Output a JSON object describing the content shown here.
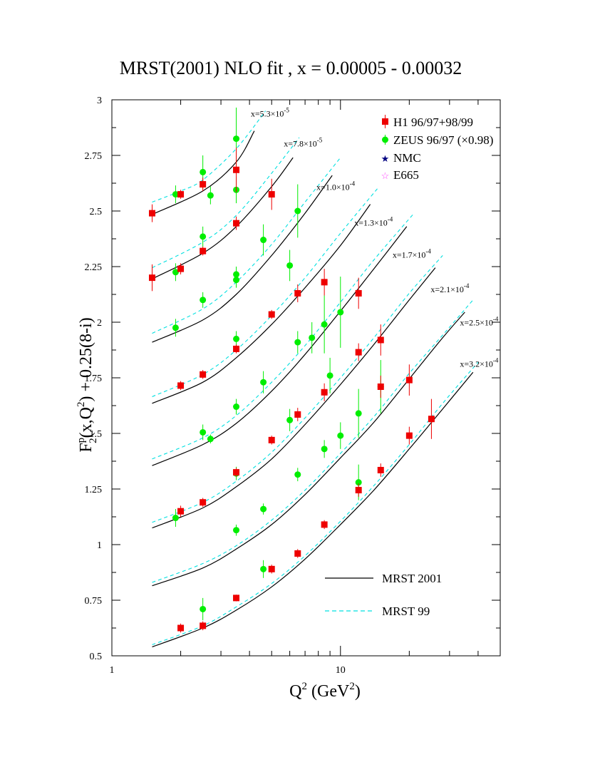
{
  "chart_data": {
    "type": "scatter",
    "title": "MRST(2001) NLO fit , x = 0.00005 - 0.00032",
    "xlabel_base": "Q",
    "xlabel_sup": "2",
    "xlabel_unit_pre": " (GeV",
    "xlabel_unit_sup": "2",
    "xlabel_unit_post": ")",
    "ylabel": {
      "f": "F",
      "sup": "p",
      "sub": "2",
      "mid": "(x,Q",
      "sup2": "2",
      "tail": ") + 0.25(8-i)"
    },
    "xscale": "log",
    "xlim": [
      1,
      50
    ],
    "ylim": [
      0.5,
      3.0
    ],
    "xticks": [
      1,
      10
    ],
    "xticklabels": [
      "1",
      "10"
    ],
    "yticks": [
      0.5,
      0.75,
      1.0,
      1.25,
      1.5,
      1.75,
      2.0,
      2.25,
      2.5,
      2.75,
      3.0
    ],
    "yticklabels": [
      "0.5",
      "0.75",
      "1",
      "1.25",
      "1.5",
      "1.75",
      "2",
      "2.25",
      "2.5",
      "2.75",
      "3"
    ],
    "legend_position": "top-right",
    "legend": [
      {
        "name": "H1 96/97+98/99",
        "marker": "square",
        "color": "#ee0000"
      },
      {
        "name": "ZEUS 96/97 (×0.98)",
        "marker": "circle",
        "color": "#00ee00"
      },
      {
        "name": "NMC",
        "marker": "star",
        "color": "#000080"
      },
      {
        "name": "E665",
        "marker": "open-star",
        "color": "#ff44ff"
      }
    ],
    "line_legend": [
      {
        "name": "MRST 2001",
        "style": "solid",
        "color": "#000000"
      },
      {
        "name": "MRST 99",
        "style": "dashed",
        "color": "#00e0e0"
      }
    ],
    "curve_labels": [
      {
        "base": "x=5.3×10",
        "exp": "-5",
        "q2": 4.05,
        "y": 2.925
      },
      {
        "base": "x=7.8×10",
        "exp": "-5",
        "q2": 5.65,
        "y": 2.79
      },
      {
        "base": "x=1.0×10",
        "exp": "-4",
        "q2": 7.85,
        "y": 2.595
      },
      {
        "base": "x=1.3×10",
        "exp": "-4",
        "q2": 11.5,
        "y": 2.435
      },
      {
        "base": "x=1.7×10",
        "exp": "-4",
        "q2": 16.9,
        "y": 2.29
      },
      {
        "base": "x=2.1×10",
        "exp": "-4",
        "q2": 24.8,
        "y": 2.135
      },
      {
        "base": "x=2.5×10",
        "exp": "-4",
        "q2": 33.3,
        "y": 1.985
      },
      {
        "base": "x=3.2×10",
        "exp": "-4",
        "q2": 33.3,
        "y": 1.8
      }
    ],
    "mrst2001": [
      {
        "x": [
          1.5,
          2.5,
          3.5,
          4.2
        ],
        "y": [
          2.485,
          2.59,
          2.72,
          2.86
        ]
      },
      {
        "x": [
          1.5,
          2.5,
          3.5,
          5.0,
          6.2
        ],
        "y": [
          2.195,
          2.31,
          2.43,
          2.61,
          2.74
        ]
      },
      {
        "x": [
          1.5,
          2.5,
          3.5,
          5.0,
          7.0,
          9.2
        ],
        "y": [
          1.91,
          2.01,
          2.125,
          2.3,
          2.49,
          2.66
        ]
      },
      {
        "x": [
          1.5,
          2.5,
          3.5,
          5.0,
          7.0,
          10.0,
          13.5
        ],
        "y": [
          1.635,
          1.73,
          1.84,
          1.99,
          2.155,
          2.345,
          2.53
        ]
      },
      {
        "x": [
          1.5,
          2.5,
          3.5,
          5.0,
          7.0,
          10.0,
          14.0,
          19.5
        ],
        "y": [
          1.355,
          1.45,
          1.545,
          1.69,
          1.855,
          2.05,
          2.24,
          2.43
        ]
      },
      {
        "x": [
          1.5,
          2.5,
          3.5,
          5.0,
          7.0,
          10.0,
          14.0,
          20.0,
          26.0
        ],
        "y": [
          1.075,
          1.165,
          1.26,
          1.385,
          1.54,
          1.72,
          1.9,
          2.1,
          2.245
        ]
      },
      {
        "x": [
          1.5,
          2.5,
          3.5,
          5.0,
          7.0,
          10.0,
          14.0,
          20.0,
          28.0,
          35.0
        ],
        "y": [
          0.815,
          0.895,
          0.98,
          1.09,
          1.225,
          1.39,
          1.55,
          1.745,
          1.93,
          2.045
        ]
      },
      {
        "x": [
          1.5,
          2.5,
          3.5,
          5.0,
          7.0,
          10.0,
          14.0,
          20.0,
          28.0,
          38.0
        ],
        "y": [
          0.54,
          0.625,
          0.705,
          0.81,
          0.935,
          1.09,
          1.245,
          1.43,
          1.61,
          1.775
        ]
      }
    ],
    "mrst99": [
      {
        "x": [
          1.5,
          2.0,
          2.5,
          3.5,
          4.7
        ],
        "y": [
          2.54,
          2.59,
          2.64,
          2.78,
          2.95
        ]
      },
      {
        "x": [
          1.5,
          2.5,
          3.5,
          5.0,
          6.6
        ],
        "y": [
          2.245,
          2.36,
          2.48,
          2.67,
          2.83
        ]
      },
      {
        "x": [
          1.5,
          2.5,
          3.5,
          5.0,
          7.0,
          10.0
        ],
        "y": [
          1.95,
          2.06,
          2.18,
          2.35,
          2.54,
          2.74
        ]
      },
      {
        "x": [
          1.5,
          2.5,
          3.5,
          5.0,
          7.0,
          10.0,
          14.5
        ],
        "y": [
          1.665,
          1.765,
          1.875,
          2.03,
          2.2,
          2.4,
          2.6
        ]
      },
      {
        "x": [
          1.5,
          2.5,
          3.5,
          5.0,
          7.0,
          10.0,
          14.0,
          21.0
        ],
        "y": [
          1.385,
          1.48,
          1.58,
          1.73,
          1.895,
          2.09,
          2.28,
          2.49
        ]
      },
      {
        "x": [
          1.5,
          2.5,
          3.5,
          5.0,
          7.0,
          10.0,
          14.0,
          20.0,
          28.0
        ],
        "y": [
          1.1,
          1.19,
          1.285,
          1.415,
          1.57,
          1.75,
          1.93,
          2.13,
          2.3
        ]
      },
      {
        "x": [
          1.5,
          2.5,
          3.5,
          5.0,
          7.0,
          10.0,
          14.0,
          20.0,
          29.0,
          38.0
        ],
        "y": [
          0.83,
          0.915,
          0.995,
          1.11,
          1.245,
          1.41,
          1.575,
          1.77,
          1.96,
          2.1
        ]
      },
      {
        "x": [
          1.5,
          2.5,
          3.5,
          5.0,
          7.0,
          10.0,
          14.0,
          20.0,
          28.0,
          40.0
        ],
        "y": [
          0.55,
          0.635,
          0.72,
          0.825,
          0.95,
          1.105,
          1.265,
          1.45,
          1.635,
          1.82
        ]
      }
    ],
    "h1": [
      {
        "x": 1.5,
        "y": 2.49,
        "err": 0.04
      },
      {
        "x": 2.0,
        "y": 2.575,
        "err": 0.02
      },
      {
        "x": 2.5,
        "y": 2.62,
        "err": 0.03
      },
      {
        "x": 3.5,
        "y": 2.685,
        "err": 0.1
      },
      {
        "x": 5.0,
        "y": 2.575,
        "err": 0.07
      },
      {
        "x": 1.5,
        "y": 2.2,
        "err": 0.06
      },
      {
        "x": 2.0,
        "y": 2.24,
        "err": 0.025
      },
      {
        "x": 2.5,
        "y": 2.32,
        "err": 0.02
      },
      {
        "x": 3.5,
        "y": 2.445,
        "err": 0.03
      },
      {
        "x": 5.0,
        "y": 2.035,
        "err": 0.02
      },
      {
        "x": 6.5,
        "y": 2.13,
        "err": 0.04
      },
      {
        "x": 8.5,
        "y": 2.18,
        "err": 0.06
      },
      {
        "x": 12.0,
        "y": 2.13,
        "err": 0.07
      },
      {
        "x": 2.0,
        "y": 1.715,
        "err": 0.02
      },
      {
        "x": 2.5,
        "y": 1.765,
        "err": 0.02
      },
      {
        "x": 3.5,
        "y": 1.88,
        "err": 0.02
      },
      {
        "x": 6.5,
        "y": 1.585,
        "err": 0.03
      },
      {
        "x": 8.5,
        "y": 1.685,
        "err": 0.04
      },
      {
        "x": 12.0,
        "y": 1.865,
        "err": 0.04
      },
      {
        "x": 15.0,
        "y": 1.92,
        "err": 0.07
      },
      {
        "x": 5.0,
        "y": 1.47,
        "err": 0.02
      },
      {
        "x": 3.5,
        "y": 1.325,
        "err": 0.02
      },
      {
        "x": 2.0,
        "y": 1.15,
        "err": 0.025
      },
      {
        "x": 2.5,
        "y": 1.19,
        "err": 0.02
      },
      {
        "x": 8.5,
        "y": 1.09,
        "err": 0.02
      },
      {
        "x": 12.0,
        "y": 1.245,
        "err": 0.03
      },
      {
        "x": 15.0,
        "y": 1.335,
        "err": 0.03
      },
      {
        "x": 15.0,
        "y": 1.71,
        "err": 0.05
      },
      {
        "x": 20.0,
        "y": 1.74,
        "err": 0.07
      },
      {
        "x": 20.0,
        "y": 1.49,
        "err": 0.04
      },
      {
        "x": 25.0,
        "y": 1.565,
        "err": 0.09
      },
      {
        "x": 5.0,
        "y": 0.89,
        "err": 0.02
      },
      {
        "x": 6.5,
        "y": 0.96,
        "err": 0.02
      },
      {
        "x": 3.5,
        "y": 0.76,
        "err": 0.015
      },
      {
        "x": 2.0,
        "y": 0.625,
        "err": 0.02
      },
      {
        "x": 2.5,
        "y": 0.635,
        "err": 0.02
      }
    ],
    "zeus": [
      {
        "x": 1.9,
        "y": 2.575,
        "err": 0.04
      },
      {
        "x": 2.5,
        "y": 2.675,
        "err": 0.075
      },
      {
        "x": 2.7,
        "y": 2.57,
        "err": 0.04
      },
      {
        "x": 3.5,
        "y": 2.825,
        "err": 0.14
      },
      {
        "x": 3.5,
        "y": 2.595,
        "err": 0.06
      },
      {
        "x": 6.5,
        "y": 2.5,
        "err": 0.12
      },
      {
        "x": 1.9,
        "y": 2.225,
        "err": 0.04
      },
      {
        "x": 2.5,
        "y": 2.385,
        "err": 0.045
      },
      {
        "x": 3.5,
        "y": 2.215,
        "err": 0.035
      },
      {
        "x": 3.5,
        "y": 2.19,
        "err": 0.035
      },
      {
        "x": 4.6,
        "y": 2.37,
        "err": 0.07
      },
      {
        "x": 6.0,
        "y": 2.255,
        "err": 0.07
      },
      {
        "x": 2.5,
        "y": 2.1,
        "err": 0.035
      },
      {
        "x": 1.9,
        "y": 1.975,
        "err": 0.04
      },
      {
        "x": 3.5,
        "y": 1.925,
        "err": 0.035
      },
      {
        "x": 4.6,
        "y": 1.73,
        "err": 0.05
      },
      {
        "x": 6.5,
        "y": 1.91,
        "err": 0.05
      },
      {
        "x": 7.5,
        "y": 1.93,
        "err": 0.07
      },
      {
        "x": 8.5,
        "y": 1.99,
        "err": 0.13
      },
      {
        "x": 10.0,
        "y": 2.045,
        "err": 0.16
      },
      {
        "x": 3.5,
        "y": 1.62,
        "err": 0.035
      },
      {
        "x": 6.0,
        "y": 1.56,
        "err": 0.05
      },
      {
        "x": 9.0,
        "y": 1.76,
        "err": 0.08
      },
      {
        "x": 2.5,
        "y": 1.505,
        "err": 0.035
      },
      {
        "x": 2.7,
        "y": 1.475,
        "err": 0.02
      },
      {
        "x": 10.0,
        "y": 1.49,
        "err": 0.06
      },
      {
        "x": 8.5,
        "y": 1.43,
        "err": 0.04
      },
      {
        "x": 12.0,
        "y": 1.59,
        "err": 0.11
      },
      {
        "x": 15.0,
        "y": 1.71,
        "err": 0.12
      },
      {
        "x": 6.5,
        "y": 1.315,
        "err": 0.03
      },
      {
        "x": 3.5,
        "y": 1.32,
        "err": 0.03
      },
      {
        "x": 12.0,
        "y": 1.28,
        "err": 0.08
      },
      {
        "x": 1.9,
        "y": 1.12,
        "err": 0.04
      },
      {
        "x": 4.6,
        "y": 1.16,
        "err": 0.025
      },
      {
        "x": 3.5,
        "y": 1.065,
        "err": 0.025
      },
      {
        "x": 4.6,
        "y": 0.89,
        "err": 0.04
      },
      {
        "x": 2.5,
        "y": 0.71,
        "err": 0.05
      }
    ]
  }
}
